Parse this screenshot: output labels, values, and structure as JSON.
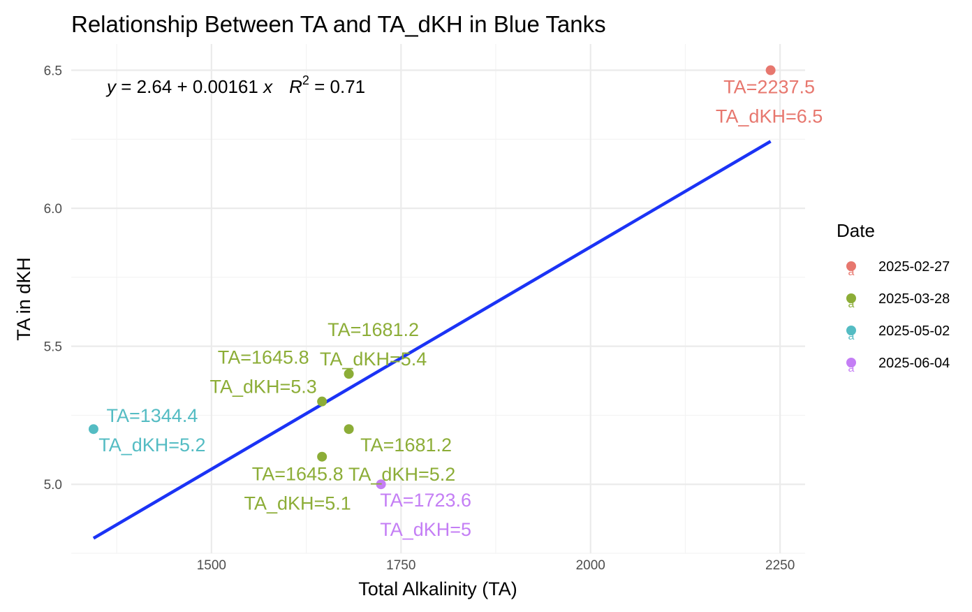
{
  "chart_data": {
    "type": "scatter",
    "title": "Relationship Between TA and TA_dKH in Blue Tanks",
    "xlabel": "Total Alkalinity (TA)",
    "ylabel": "TA in dKH",
    "xlim": [
      1315,
      2283
    ],
    "ylim": [
      4.75,
      6.595
    ],
    "x_ticks": [
      1500,
      1750,
      2000,
      2250
    ],
    "y_ticks": [
      5.0,
      5.5,
      6.0,
      6.5
    ],
    "x_tick_labels": [
      "1500",
      "1750",
      "2000",
      "2250"
    ],
    "y_tick_labels": [
      "5.0",
      "5.5",
      "6.0",
      "6.5"
    ],
    "grid": true,
    "legend": {
      "title": "Date",
      "placement": "right",
      "entries": [
        {
          "label": "2025-02-27",
          "color": "#E7776E"
        },
        {
          "label": "2025-03-28",
          "color": "#8CAD37"
        },
        {
          "label": "2025-05-02",
          "color": "#54BCC3"
        },
        {
          "label": "2025-06-04",
          "color": "#C47EF5"
        }
      ]
    },
    "series": [
      {
        "name": "2025-02-27",
        "color": "#E7776E",
        "points": [
          {
            "x": 2237.5,
            "y": 6.5,
            "label": [
              "TA=2237.5",
              "TA_dKH=6.5"
            ]
          }
        ]
      },
      {
        "name": "2025-03-28",
        "color": "#8CAD37",
        "points": [
          {
            "x": 1681.2,
            "y": 5.4,
            "label": [
              "TA=1681.2",
              "TA_dKH=5.4"
            ]
          },
          {
            "x": 1645.8,
            "y": 5.3,
            "label": [
              "TA=1645.8",
              "TA_dKH=5.3"
            ]
          },
          {
            "x": 1681.2,
            "y": 5.2,
            "label": [
              "TA=1681.2",
              "TA_dKH=5.2"
            ]
          },
          {
            "x": 1645.8,
            "y": 5.1,
            "label": [
              "TA=1645.8",
              "TA_dKH=5.1"
            ]
          }
        ]
      },
      {
        "name": "2025-05-02",
        "color": "#54BCC3",
        "points": [
          {
            "x": 1344.4,
            "y": 5.2,
            "label": [
              "TA=1344.4",
              "TA_dKH=5.2"
            ]
          }
        ]
      },
      {
        "name": "2025-06-04",
        "color": "#C47EF5",
        "points": [
          {
            "x": 1723.6,
            "y": 5.0,
            "label": [
              "TA=1723.6",
              "TA_dKH=5"
            ]
          }
        ]
      }
    ],
    "regression": {
      "color": "#1B33F5",
      "intercept": 2.64,
      "slope": 0.00161,
      "x_range": [
        1344.4,
        2237.5
      ],
      "equation_parts": {
        "y": "y",
        "eq_rhs": " = 2.64 + 0.00161 ",
        "x": "x",
        "r": "R",
        "sup": "2",
        "r2_rhs": " = 0.71"
      }
    }
  }
}
